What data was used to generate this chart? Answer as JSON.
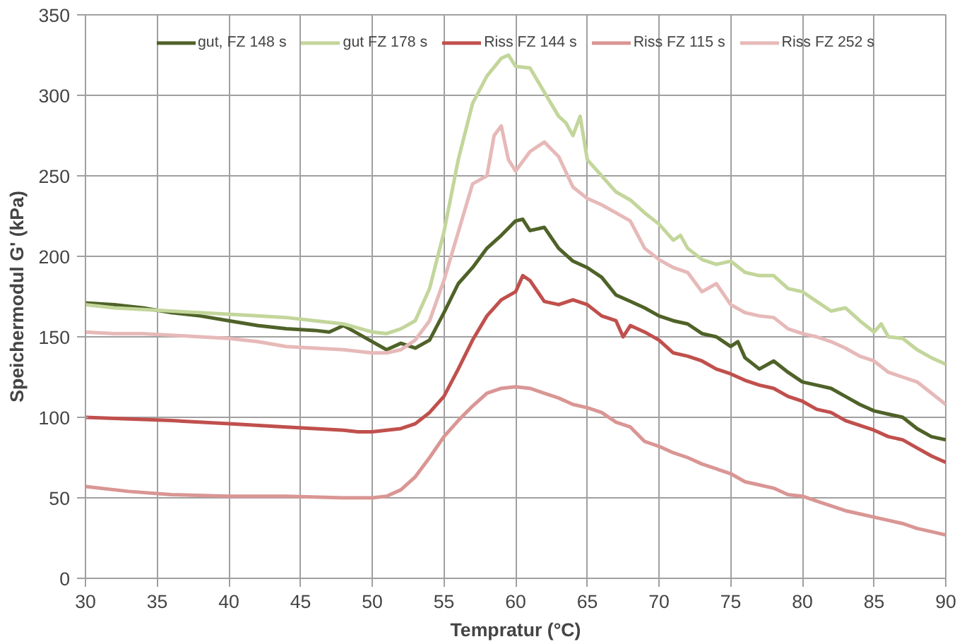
{
  "chart_data": {
    "type": "line",
    "xlabel": "Tempratur (°C)",
    "ylabel": "Speichermodul G' (kPa)",
    "xlim": [
      30,
      90
    ],
    "xticks": [
      30,
      35,
      40,
      45,
      50,
      55,
      60,
      65,
      70,
      75,
      80,
      85,
      90
    ],
    "ylim": [
      0,
      350
    ],
    "yticks": [
      0,
      50,
      100,
      150,
      200,
      250,
      300,
      350
    ],
    "grid": true,
    "legend": "top",
    "marker": "none",
    "line_style": "solid",
    "series": [
      {
        "name": "gut, FZ 148 s",
        "color": "#4f6228",
        "x": [
          30,
          32,
          34,
          36,
          38,
          40,
          42,
          44,
          46,
          47,
          48,
          49,
          50,
          51,
          52,
          53,
          54,
          55,
          56,
          57,
          58,
          59,
          60,
          60.5,
          61,
          62,
          63,
          64,
          65,
          66,
          67,
          68,
          69,
          70,
          71,
          72,
          73,
          74,
          75,
          75.5,
          76,
          77,
          78,
          79,
          80,
          81,
          82,
          83,
          84,
          85,
          86,
          87,
          88,
          89,
          90
        ],
        "values": [
          171,
          170,
          168,
          165,
          163,
          160,
          157,
          155,
          154,
          153,
          157,
          152,
          147,
          142,
          146,
          143,
          148,
          165,
          183,
          193,
          205,
          213,
          222,
          223,
          216,
          218,
          205,
          197,
          193,
          187,
          176,
          172,
          168,
          163,
          160,
          158,
          152,
          150,
          144,
          147,
          137,
          130,
          135,
          128,
          122,
          120,
          118,
          113,
          108,
          104,
          102,
          100,
          93,
          88,
          86
        ]
      },
      {
        "name": "gut FZ 178 s",
        "color": "#c3d69b",
        "x": [
          30,
          32,
          34,
          36,
          38,
          40,
          42,
          44,
          46,
          48,
          50,
          51,
          52,
          53,
          54,
          55,
          56,
          57,
          58,
          59,
          59.5,
          60,
          61,
          62,
          63,
          63.5,
          64,
          64.5,
          65,
          66,
          67,
          68,
          69,
          70,
          71,
          71.5,
          72,
          73,
          74,
          75,
          76,
          77,
          78,
          79,
          80,
          81,
          82,
          83,
          84,
          85,
          85.5,
          86,
          87,
          88,
          89,
          90
        ],
        "values": [
          170,
          168,
          167,
          166,
          165,
          164,
          163,
          162,
          160,
          158,
          153,
          152,
          155,
          160,
          180,
          215,
          260,
          295,
          312,
          323,
          325,
          318,
          317,
          302,
          287,
          283,
          275,
          287,
          260,
          250,
          240,
          235,
          227,
          220,
          210,
          213,
          205,
          198,
          195,
          197,
          190,
          188,
          188,
          180,
          178,
          172,
          166,
          168,
          160,
          153,
          158,
          150,
          149,
          142,
          137,
          133
        ]
      },
      {
        "name": "Riss FZ 144 s",
        "color": "#c0504d",
        "x": [
          30,
          33,
          36,
          40,
          44,
          48,
          49,
          50,
          52,
          53,
          54,
          55,
          56,
          57,
          58,
          59,
          60,
          60.5,
          61,
          62,
          63,
          64,
          65,
          66,
          67,
          67.5,
          68,
          69,
          70,
          71,
          72,
          73,
          74,
          75,
          76,
          77,
          78,
          79,
          80,
          81,
          82,
          83,
          84,
          85,
          86,
          87,
          88,
          89,
          90
        ],
        "values": [
          100,
          99,
          98,
          96,
          94,
          92,
          91,
          91,
          93,
          96,
          103,
          113,
          130,
          148,
          163,
          173,
          178,
          188,
          185,
          172,
          170,
          173,
          170,
          163,
          160,
          150,
          157,
          153,
          148,
          140,
          138,
          135,
          130,
          127,
          123,
          120,
          118,
          113,
          110,
          105,
          103,
          98,
          95,
          92,
          88,
          86,
          81,
          76,
          72
        ]
      },
      {
        "name": "Riss FZ 115 s",
        "color": "#d99694",
        "x": [
          30,
          33,
          36,
          40,
          44,
          48,
          50,
          51,
          52,
          53,
          54,
          55,
          56,
          57,
          58,
          59,
          60,
          61,
          62,
          63,
          64,
          65,
          66,
          67,
          68,
          69,
          70,
          71,
          72,
          73,
          74,
          75,
          76,
          77,
          78,
          79,
          80,
          81,
          82,
          83,
          84,
          85,
          86,
          87,
          88,
          89,
          90
        ],
        "values": [
          57,
          54,
          52,
          51,
          51,
          50,
          50,
          51,
          55,
          63,
          75,
          88,
          98,
          107,
          115,
          118,
          119,
          118,
          115,
          112,
          108,
          106,
          103,
          97,
          94,
          85,
          82,
          78,
          75,
          71,
          68,
          65,
          60,
          58,
          56,
          52,
          51,
          48,
          45,
          42,
          40,
          38,
          36,
          34,
          31,
          29,
          27
        ]
      },
      {
        "name": "Riss FZ 252 s",
        "color": "#e6b9b8",
        "x": [
          30,
          32,
          34,
          36,
          38,
          40,
          42,
          44,
          46,
          48,
          49,
          50,
          51,
          52,
          53,
          54,
          55,
          56,
          57,
          58,
          58.5,
          59,
          59.5,
          60,
          61,
          62,
          63,
          64,
          65,
          66,
          67,
          68,
          69,
          70,
          71,
          72,
          73,
          74,
          75,
          76,
          77,
          78,
          79,
          80,
          81,
          82,
          83,
          84,
          85,
          86,
          87,
          88,
          89,
          90
        ],
        "values": [
          153,
          152,
          152,
          151,
          150,
          149,
          147,
          144,
          143,
          142,
          141,
          140,
          140,
          142,
          148,
          160,
          185,
          215,
          245,
          250,
          275,
          281,
          260,
          253,
          265,
          271,
          262,
          243,
          236,
          232,
          227,
          222,
          205,
          198,
          193,
          190,
          178,
          183,
          170,
          165,
          163,
          162,
          155,
          152,
          150,
          147,
          143,
          138,
          135,
          128,
          125,
          122,
          115,
          108
        ]
      }
    ]
  }
}
